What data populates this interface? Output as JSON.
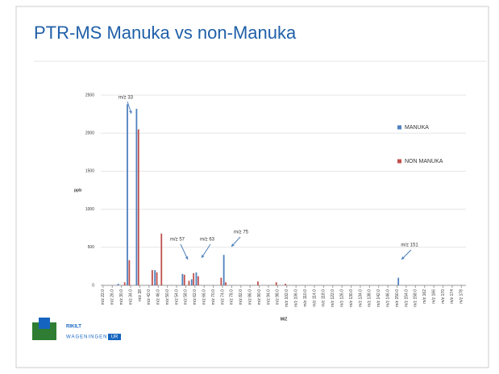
{
  "slide_title": "PTR-MS Manuka vs non-Manuka",
  "logo": {
    "name": "RIKILT",
    "org": "WAGENINGEN",
    "org_box": "UR"
  },
  "chart_data": {
    "type": "bar",
    "ylabel": "ppb",
    "xlabel": "M/Z",
    "xlim": [
      21,
      180
    ],
    "xticks": [
      {
        "value": 22,
        "label": "m/z 22.0"
      },
      {
        "value": 26,
        "label": "m/z 26.0"
      },
      {
        "value": 30,
        "label": "m/z 30.0"
      },
      {
        "value": 34,
        "label": "m/z 34.0"
      },
      {
        "value": 38,
        "label": "m/z 38"
      },
      {
        "value": 42,
        "label": "m/z 42.0"
      },
      {
        "value": 46,
        "label": "m/z 46.0"
      },
      {
        "value": 50,
        "label": "m/z 50.0"
      },
      {
        "value": 54,
        "label": "m/z 54.0"
      },
      {
        "value": 58,
        "label": "m/z 58.0"
      },
      {
        "value": 62,
        "label": "m/z 62.0"
      },
      {
        "value": 66,
        "label": "m/z 66.0"
      },
      {
        "value": 70,
        "label": "m/z 70.0"
      },
      {
        "value": 74,
        "label": "m/z 74.0"
      },
      {
        "value": 78,
        "label": "m/z 78.0"
      },
      {
        "value": 82,
        "label": "m/z 82.0"
      },
      {
        "value": 86,
        "label": "m/z 86.0"
      },
      {
        "value": 90,
        "label": "m/z 90.0"
      },
      {
        "value": 94,
        "label": "m/z 94.0"
      },
      {
        "value": 98,
        "label": "m/z 98.0"
      },
      {
        "value": 102,
        "label": "m/z 102.0"
      },
      {
        "value": 106,
        "label": "m/z 106.0"
      },
      {
        "value": 110,
        "label": "m/z 110.0"
      },
      {
        "value": 114,
        "label": "m/z 114.0"
      },
      {
        "value": 118,
        "label": "m/z 118.0"
      },
      {
        "value": 122,
        "label": "m/z 122.0"
      },
      {
        "value": 126,
        "label": "m/z 126.0"
      },
      {
        "value": 130,
        "label": "m/z 130.0"
      },
      {
        "value": 134,
        "label": "m/z 134.0"
      },
      {
        "value": 138,
        "label": "m/z 138.0"
      },
      {
        "value": 142,
        "label": "m/z 142.0"
      },
      {
        "value": 146,
        "label": "m/z 146.0"
      },
      {
        "value": 150,
        "label": "m/z 150.0"
      },
      {
        "value": 154,
        "label": "m/z 154.0"
      },
      {
        "value": 158,
        "label": "m/z 158.0"
      },
      {
        "value": 162,
        "label": "m/z 162"
      },
      {
        "value": 166,
        "label": "m/z 166"
      },
      {
        "value": 170,
        "label": "m/z 170"
      },
      {
        "value": 174,
        "label": "m/z 174"
      },
      {
        "value": 178,
        "label": "m/z 178"
      }
    ],
    "ylim": [
      0,
      2500
    ],
    "yticks": [
      0,
      500,
      1000,
      1500,
      2000,
      2500
    ],
    "grid": true,
    "series": [
      {
        "name": "MANUKA",
        "color": "#4f81bd",
        "x": [
          29,
          33,
          37,
          45,
          57,
          61,
          63,
          75,
          151
        ],
        "values": [
          20,
          2380,
          2320,
          200,
          150,
          80,
          170,
          400,
          100
        ]
      },
      {
        "name": "NON MANUKA",
        "color": "#c0504d",
        "x": [
          31,
          33,
          37,
          43,
          45,
          47,
          57,
          59,
          61,
          63,
          73,
          75,
          89,
          97,
          101
        ],
        "values": [
          40,
          330,
          2050,
          200,
          170,
          680,
          140,
          60,
          160,
          120,
          100,
          40,
          50,
          40,
          20
        ]
      }
    ],
    "annotations": [
      "m/z 33",
      "m/z 57",
      "m/z 63",
      "m/z 75",
      "m/z 151"
    ]
  }
}
